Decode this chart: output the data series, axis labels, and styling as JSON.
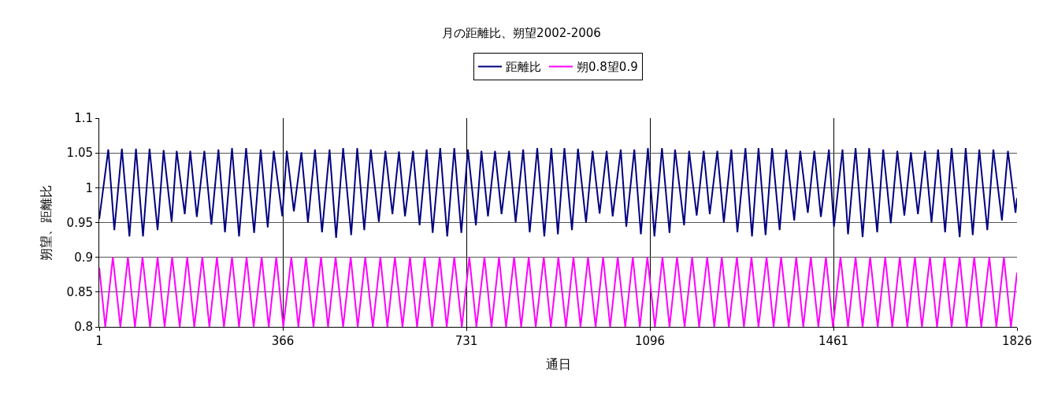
{
  "chart_data": {
    "type": "line",
    "title": "月の距離比、朔望2002-2006",
    "xlabel": "通日",
    "ylabel": "朔望、距離比",
    "xlim": [
      1,
      1826
    ],
    "xticks": [
      1,
      366,
      731,
      1096,
      1461,
      1826
    ],
    "ylim": [
      0.8,
      1.1
    ],
    "yticks": [
      0.8,
      0.85,
      0.9,
      0.95,
      1,
      1.05,
      1.1
    ],
    "grid": true,
    "legend": "top",
    "marker": "none",
    "line_style": "solid",
    "series": [
      {
        "name": "距離比",
        "color": "#000080",
        "x": [
          1,
          19,
          31,
          46,
          61,
          74,
          88,
          101,
          117,
          129,
          145,
          155,
          171,
          182,
          195,
          210,
          224,
          238,
          251,
          265,
          279,
          293,
          309,
          322,
          336,
          348,
          365,
          374,
          388,
          403,
          416,
          430,
          444,
          459,
          472,
          486,
          502,
          514,
          528,
          541,
          557,
          570,
          584,
          597,
          609,
          625,
          638,
          652,
          664,
          679,
          693,
          707,
          721,
          734,
          750,
          761,
          774,
          788,
          801,
          816,
          829,
          844,
          857,
          872,
          886,
          900,
          913,
          926,
          941,
          953,
          969,
          982,
          996,
          1010,
          1022,
          1038,
          1049,
          1065,
          1078,
          1092,
          1105,
          1120,
          1135,
          1146,
          1164,
          1174,
          1189,
          1203,
          1215,
          1230,
          1243,
          1258,
          1270,
          1286,
          1299,
          1312,
          1326,
          1339,
          1354,
          1367,
          1383,
          1395,
          1410,
          1423,
          1436,
          1452,
          1462,
          1479,
          1490,
          1505,
          1519,
          1532,
          1548,
          1560,
          1575,
          1588,
          1602,
          1615,
          1629,
          1643,
          1656,
          1669,
          1683,
          1696,
          1712,
          1724,
          1738,
          1751,
          1767,
          1779,
          1796,
          1808,
          1823,
          1826
        ],
        "values": [
          0.955,
          1.055,
          0.939,
          1.056,
          0.93,
          1.056,
          0.93,
          1.056,
          0.939,
          1.054,
          0.951,
          1.053,
          0.962,
          1.053,
          0.958,
          1.053,
          0.947,
          1.055,
          0.936,
          1.057,
          0.93,
          1.057,
          0.935,
          1.055,
          0.943,
          1.053,
          0.959,
          1.053,
          0.966,
          1.051,
          0.95,
          1.055,
          0.936,
          1.055,
          0.928,
          1.057,
          0.932,
          1.057,
          0.939,
          1.055,
          0.951,
          1.053,
          0.962,
          1.052,
          0.959,
          1.053,
          0.946,
          1.055,
          0.935,
          1.057,
          0.93,
          1.057,
          0.935,
          1.055,
          0.946,
          1.053,
          0.959,
          1.053,
          0.962,
          1.053,
          0.95,
          1.055,
          0.936,
          1.057,
          0.93,
          1.057,
          0.933,
          1.057,
          0.939,
          1.056,
          0.95,
          1.053,
          0.963,
          1.053,
          0.959,
          1.055,
          0.944,
          1.055,
          0.933,
          1.057,
          0.93,
          1.057,
          0.935,
          1.055,
          0.946,
          1.053,
          0.96,
          1.053,
          0.962,
          1.053,
          0.95,
          1.055,
          0.936,
          1.057,
          0.93,
          1.057,
          0.932,
          1.057,
          0.939,
          1.055,
          0.953,
          1.053,
          0.964,
          1.053,
          0.958,
          1.055,
          0.944,
          1.055,
          0.933,
          1.057,
          0.929,
          1.057,
          0.936,
          1.055,
          0.949,
          1.053,
          0.96,
          1.051,
          0.962,
          1.053,
          0.95,
          1.055,
          0.936,
          1.057,
          0.929,
          1.057,
          0.932,
          1.055,
          0.939,
          1.055,
          0.953,
          1.053,
          0.964,
          0.985
        ]
      },
      {
        "name": "朔0.8望0.9",
        "color": "#ff00ff",
        "x": [
          1,
          13,
          28,
          43,
          58,
          72,
          87,
          102,
          117,
          131,
          146,
          161,
          176,
          190,
          206,
          220,
          235,
          249,
          265,
          279,
          294,
          308,
          324,
          338,
          353,
          367,
          383,
          397,
          412,
          427,
          442,
          456,
          471,
          486,
          501,
          515,
          530,
          545,
          560,
          574,
          589,
          604,
          619,
          633,
          648,
          663,
          678,
          692,
          707,
          722,
          737,
          751,
          767,
          781,
          796,
          810,
          826,
          840,
          855,
          869,
          885,
          899,
          914,
          929,
          944,
          958,
          973,
          988,
          1003,
          1017,
          1032,
          1047,
          1062,
          1076,
          1091,
          1106,
          1121,
          1135,
          1150,
          1165,
          1180,
          1194,
          1210,
          1224,
          1239,
          1253,
          1269,
          1283,
          1298,
          1312,
          1328,
          1342,
          1357,
          1372,
          1387,
          1401,
          1416,
          1431,
          1446,
          1460,
          1475,
          1490,
          1505,
          1519,
          1534,
          1549,
          1564,
          1578,
          1593,
          1608,
          1623,
          1637,
          1653,
          1667,
          1682,
          1696,
          1712,
          1726,
          1741,
          1755,
          1771,
          1785,
          1800,
          1814,
          1826
        ],
        "values": [
          0.885,
          0.8,
          0.9,
          0.8,
          0.9,
          0.8,
          0.9,
          0.8,
          0.9,
          0.8,
          0.9,
          0.8,
          0.9,
          0.8,
          0.9,
          0.8,
          0.9,
          0.8,
          0.9,
          0.8,
          0.9,
          0.8,
          0.9,
          0.8,
          0.9,
          0.8,
          0.9,
          0.8,
          0.9,
          0.8,
          0.9,
          0.8,
          0.9,
          0.8,
          0.9,
          0.8,
          0.9,
          0.8,
          0.9,
          0.8,
          0.9,
          0.8,
          0.9,
          0.8,
          0.9,
          0.8,
          0.9,
          0.8,
          0.9,
          0.8,
          0.9,
          0.8,
          0.9,
          0.8,
          0.9,
          0.8,
          0.9,
          0.8,
          0.9,
          0.8,
          0.9,
          0.8,
          0.9,
          0.8,
          0.9,
          0.8,
          0.9,
          0.8,
          0.9,
          0.8,
          0.9,
          0.8,
          0.9,
          0.8,
          0.9,
          0.8,
          0.9,
          0.8,
          0.9,
          0.8,
          0.9,
          0.8,
          0.9,
          0.8,
          0.9,
          0.8,
          0.9,
          0.8,
          0.9,
          0.8,
          0.9,
          0.8,
          0.9,
          0.8,
          0.9,
          0.8,
          0.9,
          0.8,
          0.9,
          0.8,
          0.9,
          0.8,
          0.9,
          0.8,
          0.9,
          0.8,
          0.9,
          0.8,
          0.9,
          0.8,
          0.9,
          0.8,
          0.9,
          0.8,
          0.9,
          0.8,
          0.9,
          0.8,
          0.9,
          0.8,
          0.9,
          0.8,
          0.9,
          0.8,
          0.878
        ]
      }
    ]
  }
}
